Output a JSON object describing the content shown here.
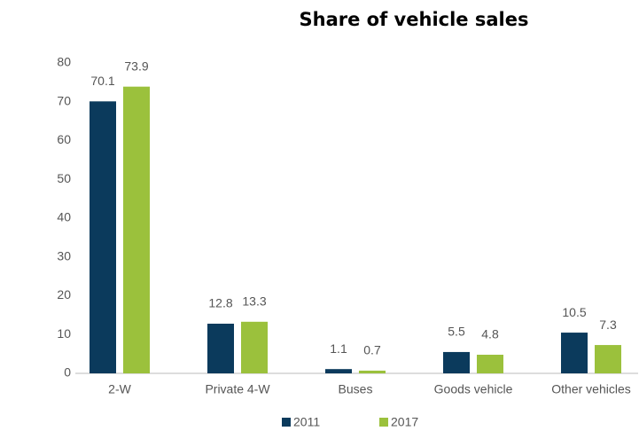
{
  "chart_data": {
    "type": "bar",
    "title": "Share of vehicle sales",
    "categories": [
      "2-W",
      "Private 4-W",
      "Buses",
      "Goods vehicle",
      "Other vehicles"
    ],
    "series": [
      {
        "name": "2011",
        "color": "#0b3a5c",
        "values": [
          70.1,
          12.8,
          1.1,
          5.5,
          10.5
        ]
      },
      {
        "name": "2017",
        "color": "#9bc13c",
        "values": [
          73.9,
          13.3,
          0.7,
          4.8,
          7.3
        ]
      }
    ],
    "ylim": [
      0,
      80
    ],
    "yticks": [
      0,
      10,
      20,
      30,
      40,
      50,
      60,
      70,
      80
    ],
    "grid": false
  }
}
